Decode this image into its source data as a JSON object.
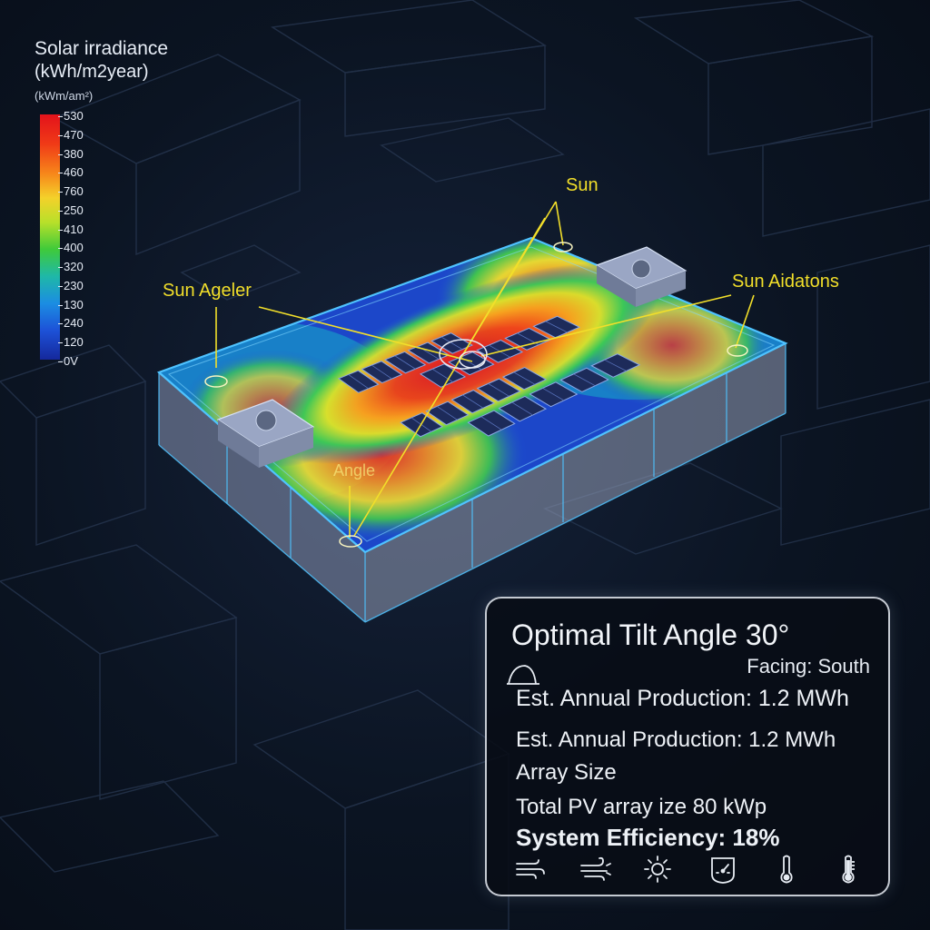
{
  "legend": {
    "title_line1": "Solar irradiance",
    "title_line2": "(kWh/m2year)",
    "unit": "(kWm/am²)",
    "ticks": [
      "530",
      "470",
      "380",
      "460",
      "760",
      "250",
      "410",
      "400",
      "320",
      "230",
      "130",
      "240",
      "120",
      "0V"
    ]
  },
  "annotations": {
    "sun": "Sun",
    "sun_ageler": "Sun Ageler",
    "sun_aidatons": "Sun Aidatons",
    "angle": "Angle"
  },
  "panel": {
    "heading": "Optimal Tilt Angle 30°",
    "facing": "Facing: South",
    "production_primary": "Est. Annual Production: 1.2 MWh",
    "production_secondary": "Est. Annual Production: 1.2 MWh",
    "array_size": "Array Size",
    "total_pv": "Total PV array ize 80 kWp",
    "efficiency": "System Efficiency: 18%",
    "icons": [
      "wind-icon",
      "wind-gust-icon",
      "sun-icon",
      "gauge-icon",
      "thermometer-icon",
      "thermometer-filled-icon"
    ]
  },
  "colors": {
    "background": "#0b1320",
    "annotation": "#f2df2a",
    "roof_outline": "#4fc3ff",
    "hot": "#e3121b",
    "cold": "#1d3fd0"
  }
}
